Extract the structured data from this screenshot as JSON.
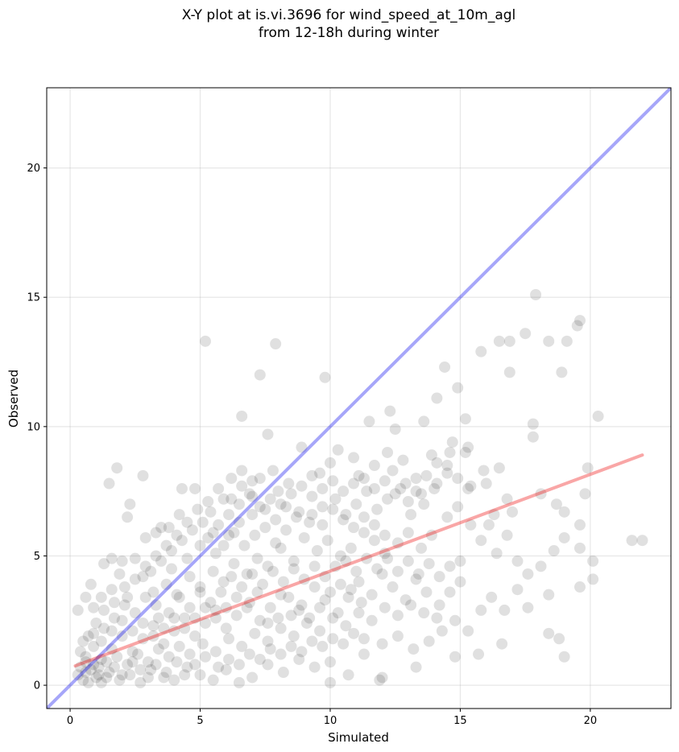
{
  "chart_data": {
    "type": "scatter",
    "title_line1": "X-Y plot at is.vi.3696 for wind_speed_at_10m_agl",
    "title_line2": "from 12-18h during winter",
    "xlabel": "Simulated",
    "ylabel": "Observed",
    "xlim": [
      -0.9,
      23.1
    ],
    "ylim": [
      -0.9,
      23.1
    ],
    "xticks": [
      0,
      5,
      10,
      15,
      20
    ],
    "yticks": [
      0,
      5,
      10,
      15,
      20
    ],
    "grid": true,
    "point_color": "#000000",
    "point_opacity": 0.12,
    "identity_line": {
      "color": "#0000ee",
      "opacity": 0.35,
      "from": [
        -0.9,
        -0.9
      ],
      "to": [
        23.1,
        23.1
      ]
    },
    "fit_line": {
      "color": "#ee0000",
      "opacity": 0.35,
      "from": [
        0.2,
        0.75
      ],
      "to": [
        22.0,
        8.9
      ]
    },
    "points": [
      [
        5.2,
        13.3
      ],
      [
        7.3,
        12.0
      ],
      [
        7.9,
        13.2
      ],
      [
        1.5,
        7.8
      ],
      [
        1.8,
        8.4
      ],
      [
        2.8,
        8.1
      ],
      [
        2.3,
        7.0
      ],
      [
        2.2,
        6.5
      ],
      [
        6.6,
        10.4
      ],
      [
        7.6,
        9.7
      ],
      [
        9.8,
        11.9
      ],
      [
        11.5,
        10.2
      ],
      [
        12.3,
        10.6
      ],
      [
        12.5,
        9.9
      ],
      [
        13.6,
        10.2
      ],
      [
        14.4,
        12.3
      ],
      [
        14.9,
        11.5
      ],
      [
        14.1,
        11.1
      ],
      [
        15.2,
        10.3
      ],
      [
        15.8,
        12.9
      ],
      [
        16.5,
        13.3
      ],
      [
        16.9,
        13.3
      ],
      [
        16.9,
        12.1
      ],
      [
        17.5,
        13.6
      ],
      [
        17.9,
        15.1
      ],
      [
        18.4,
        13.3
      ],
      [
        18.9,
        12.1
      ],
      [
        19.1,
        13.3
      ],
      [
        19.5,
        13.9
      ],
      [
        19.6,
        14.1
      ],
      [
        20.3,
        10.4
      ],
      [
        17.8,
        10.1
      ],
      [
        17.8,
        9.6
      ],
      [
        21.6,
        5.6
      ],
      [
        22.0,
        5.6
      ],
      [
        20.1,
        4.1
      ],
      [
        20.1,
        4.8
      ],
      [
        19.6,
        3.8
      ],
      [
        19.0,
        1.1
      ],
      [
        18.8,
        1.8
      ],
      [
        18.4,
        2.0
      ],
      [
        18.4,
        3.5
      ],
      [
        17.6,
        3.0
      ],
      [
        16.6,
        1.6
      ],
      [
        15.7,
        1.2
      ],
      [
        14.8,
        1.1
      ],
      [
        13.3,
        0.7
      ],
      [
        12.0,
        0.3
      ],
      [
        11.9,
        0.2
      ],
      [
        10.0,
        0.1
      ],
      [
        19.8,
        7.4
      ],
      [
        19.9,
        8.4
      ],
      [
        18.7,
        7.0
      ],
      [
        19.0,
        6.7
      ],
      [
        18.1,
        7.4
      ],
      [
        19.6,
        6.2
      ],
      [
        19.6,
        5.3
      ],
      [
        17.0,
        6.7
      ],
      [
        16.8,
        7.2
      ],
      [
        16.3,
        6.6
      ],
      [
        16.8,
        5.8
      ],
      [
        17.2,
        4.8
      ],
      [
        16.4,
        5.1
      ],
      [
        16.1,
        6.2
      ],
      [
        15.9,
        8.3
      ],
      [
        16.5,
        8.4
      ],
      [
        16.0,
        7.8
      ],
      [
        15.4,
        7.7
      ],
      [
        15.3,
        9.2
      ],
      [
        14.7,
        9.4
      ],
      [
        14.6,
        9.0
      ],
      [
        15.2,
        9.0
      ],
      [
        14.5,
        8.2
      ],
      [
        14.1,
        8.6
      ],
      [
        13.9,
        8.9
      ],
      [
        13.5,
        7.4
      ],
      [
        13.3,
        8.0
      ],
      [
        13.0,
        7.1
      ],
      [
        12.8,
        8.7
      ],
      [
        12.4,
        8.3
      ],
      [
        12.2,
        9.0
      ],
      [
        11.7,
        8.5
      ],
      [
        11.1,
        8.1
      ],
      [
        10.9,
        8.8
      ],
      [
        10.3,
        9.1
      ],
      [
        10.0,
        8.6
      ],
      [
        9.6,
        8.2
      ],
      [
        9.3,
        8.1
      ],
      [
        8.9,
        9.2
      ],
      [
        8.4,
        7.8
      ],
      [
        8.0,
        7.5
      ],
      [
        7.8,
        8.3
      ],
      [
        7.3,
        8.0
      ],
      [
        7.0,
        7.3
      ],
      [
        6.6,
        8.3
      ],
      [
        6.2,
        8.0
      ],
      [
        5.9,
        7.2
      ],
      [
        5.4,
        6.7
      ],
      [
        5.1,
        6.3
      ],
      [
        4.8,
        7.6
      ],
      [
        4.3,
        7.6
      ],
      [
        4.2,
        6.6
      ],
      [
        3.8,
        6.1
      ],
      [
        3.5,
        6.1
      ],
      [
        3.3,
        5.9
      ],
      [
        2.9,
        5.7
      ],
      [
        2.5,
        4.9
      ],
      [
        2.0,
        4.8
      ],
      [
        1.6,
        4.9
      ],
      [
        1.9,
        4.3
      ],
      [
        1.3,
        4.7
      ],
      [
        0.8,
        3.9
      ],
      [
        0.6,
        3.4
      ],
      [
        0.3,
        2.9
      ],
      [
        1.2,
        3.4
      ],
      [
        0.9,
        3.0
      ],
      [
        1.6,
        3.7
      ],
      [
        2.2,
        3.4
      ],
      [
        2.8,
        4.2
      ],
      [
        3.2,
        3.6
      ],
      [
        3.9,
        4.5
      ],
      [
        4.5,
        4.9
      ],
      [
        5.0,
        5.4
      ],
      [
        5.6,
        5.1
      ],
      [
        6.1,
        5.8
      ],
      [
        6.5,
        6.3
      ],
      [
        7.0,
        6.6
      ],
      [
        7.5,
        6.1
      ],
      [
        7.9,
        5.5
      ],
      [
        8.3,
        6.0
      ],
      [
        8.8,
        6.7
      ],
      [
        9.2,
        6.3
      ],
      [
        9.7,
        6.9
      ],
      [
        10.2,
        7.2
      ],
      [
        10.6,
        6.6
      ],
      [
        11.0,
        7.0
      ],
      [
        11.4,
        7.5
      ],
      [
        11.8,
        6.8
      ],
      [
        12.2,
        7.2
      ],
      [
        12.7,
        7.6
      ],
      [
        13.1,
        6.6
      ],
      [
        13.6,
        7.0
      ],
      [
        14.0,
        7.6
      ],
      [
        14.5,
        6.5
      ],
      [
        14.9,
        6.9
      ],
      [
        15.4,
        6.2
      ],
      [
        15.8,
        5.6
      ],
      [
        13.9,
        5.8
      ],
      [
        13.5,
        5.3
      ],
      [
        13.0,
        5.9
      ],
      [
        12.6,
        5.5
      ],
      [
        12.1,
        5.1
      ],
      [
        11.7,
        5.6
      ],
      [
        11.3,
        5.9
      ],
      [
        10.8,
        5.3
      ],
      [
        10.4,
        5.0
      ],
      [
        9.9,
        5.6
      ],
      [
        9.5,
        5.2
      ],
      [
        9.0,
        5.7
      ],
      [
        8.6,
        4.8
      ],
      [
        8.1,
        5.3
      ],
      [
        7.6,
        4.6
      ],
      [
        7.2,
        4.9
      ],
      [
        6.8,
        4.3
      ],
      [
        6.3,
        4.7
      ],
      [
        5.9,
        4.0
      ],
      [
        5.5,
        4.4
      ],
      [
        5.0,
        3.8
      ],
      [
        4.6,
        4.2
      ],
      [
        4.1,
        3.5
      ],
      [
        3.7,
        3.9
      ],
      [
        3.3,
        3.1
      ],
      [
        2.9,
        3.4
      ],
      [
        2.5,
        2.8
      ],
      [
        2.1,
        3.1
      ],
      [
        1.7,
        2.6
      ],
      [
        1.3,
        2.2
      ],
      [
        0.9,
        2.0
      ],
      [
        0.5,
        1.7
      ],
      [
        0.4,
        1.3
      ],
      [
        0.6,
        0.9
      ],
      [
        0.8,
        0.6
      ],
      [
        1.0,
        0.3
      ],
      [
        0.7,
        0.1
      ],
      [
        0.5,
        0.2
      ],
      [
        1.2,
        0.1
      ],
      [
        1.5,
        0.5
      ],
      [
        1.9,
        0.2
      ],
      [
        2.3,
        0.4
      ],
      [
        2.7,
        0.1
      ],
      [
        3.1,
        0.6
      ],
      [
        3.6,
        0.3
      ],
      [
        4.0,
        0.2
      ],
      [
        4.5,
        0.7
      ],
      [
        5.0,
        0.4
      ],
      [
        5.5,
        0.2
      ],
      [
        6.0,
        0.6
      ],
      [
        6.5,
        0.1
      ],
      [
        7.0,
        0.3
      ],
      [
        7.6,
        0.8
      ],
      [
        8.2,
        0.5
      ],
      [
        8.8,
        1.0
      ],
      [
        9.4,
        0.7
      ],
      [
        10.0,
        0.9
      ],
      [
        10.7,
        0.4
      ],
      [
        11.3,
        1.2
      ],
      [
        12.0,
        1.6
      ],
      [
        12.6,
        1.9
      ],
      [
        13.2,
        1.4
      ],
      [
        13.8,
        1.7
      ],
      [
        14.3,
        2.1
      ],
      [
        14.8,
        2.5
      ],
      [
        15.3,
        2.1
      ],
      [
        15.8,
        2.9
      ],
      [
        16.2,
        3.4
      ],
      [
        16.7,
        2.9
      ],
      [
        17.2,
        3.7
      ],
      [
        17.6,
        4.3
      ],
      [
        18.1,
        4.6
      ],
      [
        18.6,
        5.2
      ],
      [
        19.0,
        5.7
      ],
      [
        15.0,
        4.0
      ],
      [
        14.6,
        3.6
      ],
      [
        14.2,
        3.1
      ],
      [
        13.7,
        3.6
      ],
      [
        13.3,
        4.1
      ],
      [
        12.9,
        3.3
      ],
      [
        12.4,
        3.8
      ],
      [
        12.0,
        4.3
      ],
      [
        11.6,
        3.5
      ],
      [
        11.1,
        4.0
      ],
      [
        10.7,
        3.4
      ],
      [
        10.3,
        2.8
      ],
      [
        9.8,
        3.3
      ],
      [
        9.4,
        3.8
      ],
      [
        8.9,
        3.1
      ],
      [
        8.5,
        2.7
      ],
      [
        8.1,
        3.5
      ],
      [
        7.7,
        3.0
      ],
      [
        7.3,
        2.5
      ],
      [
        6.9,
        3.2
      ],
      [
        6.4,
        2.7
      ],
      [
        6.0,
        2.2
      ],
      [
        5.6,
        2.9
      ],
      [
        5.2,
        2.4
      ],
      [
        4.8,
        1.9
      ],
      [
        4.4,
        2.6
      ],
      [
        4.0,
        2.1
      ],
      [
        3.6,
        1.6
      ],
      [
        3.2,
        2.3
      ],
      [
        2.8,
        1.8
      ],
      [
        2.4,
        1.3
      ],
      [
        2.0,
        1.9
      ],
      [
        1.6,
        1.4
      ],
      [
        1.2,
        1.0
      ],
      [
        0.9,
        1.5
      ],
      [
        0.6,
        1.1
      ],
      [
        0.4,
        0.7
      ],
      [
        0.3,
        0.4
      ],
      [
        1.1,
        0.7
      ],
      [
        1.4,
        0.9
      ],
      [
        1.8,
        1.1
      ],
      [
        2.2,
        0.8
      ],
      [
        2.6,
        1.2
      ],
      [
        3.0,
        0.9
      ],
      [
        3.4,
        1.4
      ],
      [
        3.8,
        1.1
      ],
      [
        4.2,
        1.5
      ],
      [
        4.6,
        1.2
      ],
      [
        5.1,
        1.6
      ],
      [
        5.6,
        1.3
      ],
      [
        6.1,
        1.8
      ],
      [
        6.6,
        1.5
      ],
      [
        7.1,
        2.0
      ],
      [
        7.6,
        1.7
      ],
      [
        8.1,
        2.2
      ],
      [
        8.6,
        1.9
      ],
      [
        9.1,
        2.4
      ],
      [
        9.6,
        2.1
      ],
      [
        10.1,
        2.6
      ],
      [
        10.6,
        2.3
      ],
      [
        11.1,
        2.8
      ],
      [
        11.6,
        2.5
      ],
      [
        12.1,
        3.0
      ],
      [
        12.6,
        2.7
      ],
      [
        13.1,
        3.1
      ],
      [
        13.6,
        2.8
      ],
      [
        14.1,
        2.6
      ],
      [
        9.3,
        6.6
      ],
      [
        9.7,
        6.2
      ],
      [
        10.1,
        6.8
      ],
      [
        10.5,
        6.4
      ],
      [
        10.9,
        6.1
      ],
      [
        11.3,
        6.5
      ],
      [
        11.7,
        6.2
      ],
      [
        12.1,
        5.8
      ],
      [
        8.7,
        6.5
      ],
      [
        8.3,
        6.9
      ],
      [
        7.9,
        6.4
      ],
      [
        7.5,
        6.8
      ],
      [
        7.1,
        5.8
      ],
      [
        6.7,
        5.4
      ],
      [
        6.3,
        5.9
      ],
      [
        5.9,
        5.4
      ],
      [
        5.5,
        5.9
      ],
      [
        10.2,
        4.6
      ],
      [
        9.8,
        4.2
      ],
      [
        9.4,
        4.6
      ],
      [
        9.0,
        4.1
      ],
      [
        8.6,
        4.5
      ],
      [
        8.2,
        4.0
      ],
      [
        7.8,
        4.4
      ],
      [
        7.4,
        3.9
      ],
      [
        7.0,
        4.3
      ],
      [
        6.6,
        3.8
      ],
      [
        6.2,
        4.2
      ],
      [
        5.8,
        3.6
      ],
      [
        5.4,
        3.2
      ],
      [
        5.0,
        3.6
      ],
      [
        4.6,
        3.0
      ],
      [
        4.2,
        3.4
      ],
      [
        3.8,
        2.8
      ],
      [
        3.4,
        2.6
      ],
      [
        10.6,
        4.8
      ],
      [
        11.0,
        4.4
      ],
      [
        11.4,
        4.9
      ],
      [
        11.8,
        4.5
      ],
      [
        12.2,
        4.9
      ],
      [
        12.6,
        4.4
      ],
      [
        13.0,
        4.8
      ],
      [
        13.4,
        4.3
      ],
      [
        13.8,
        4.7
      ],
      [
        14.2,
        4.2
      ],
      [
        14.6,
        4.6
      ],
      [
        15.0,
        4.8
      ],
      [
        11.2,
        3.2
      ],
      [
        10.8,
        3.7
      ],
      [
        10.4,
        3.9
      ],
      [
        10.0,
        3.6
      ],
      [
        9.6,
        3.0
      ],
      [
        9.2,
        2.6
      ],
      [
        8.8,
        2.9
      ],
      [
        8.4,
        3.4
      ],
      [
        8.0,
        2.6
      ],
      [
        7.6,
        2.4
      ],
      [
        7.2,
        3.6
      ],
      [
        6.8,
        3.0
      ],
      [
        6.4,
        3.4
      ],
      [
        6.0,
        3.0
      ],
      [
        5.6,
        2.6
      ],
      [
        5.2,
        3.0
      ],
      [
        4.8,
        2.6
      ],
      [
        4.4,
        2.2
      ],
      [
        4.0,
        2.6
      ],
      [
        3.6,
        2.2
      ],
      [
        3.2,
        1.9
      ],
      [
        2.8,
        2.4
      ],
      [
        2.4,
        2.1
      ],
      [
        2.0,
        2.5
      ],
      [
        1.6,
        2.1
      ],
      [
        1.2,
        1.7
      ],
      [
        3.1,
        4.4
      ],
      [
        3.5,
        4.8
      ],
      [
        3.9,
        5.2
      ],
      [
        4.3,
        5.6
      ],
      [
        4.7,
        6.0
      ],
      [
        5.3,
        5.7
      ],
      [
        5.7,
        6.2
      ],
      [
        6.1,
        6.6
      ],
      [
        6.5,
        7.0
      ],
      [
        6.9,
        7.4
      ],
      [
        7.3,
        6.9
      ],
      [
        7.7,
        7.2
      ],
      [
        8.1,
        7.0
      ],
      [
        8.5,
        7.4
      ],
      [
        8.9,
        7.7
      ],
      [
        9.3,
        7.3
      ],
      [
        9.7,
        7.6
      ],
      [
        10.1,
        7.9
      ],
      [
        10.5,
        7.5
      ],
      [
        10.9,
        7.8
      ],
      [
        11.3,
        8.0
      ],
      [
        11.7,
        7.6
      ],
      [
        12.1,
        7.9
      ],
      [
        12.5,
        7.4
      ],
      [
        12.9,
        7.8
      ],
      [
        13.3,
        7.5
      ],
      [
        13.7,
        8.1
      ],
      [
        14.1,
        7.8
      ],
      [
        14.5,
        8.5
      ],
      [
        14.9,
        8.0
      ],
      [
        15.3,
        7.6
      ],
      [
        0.7,
        1.9
      ],
      [
        1.0,
        2.4
      ],
      [
        1.3,
        2.9
      ],
      [
        1.7,
        3.2
      ],
      [
        2.1,
        3.8
      ],
      [
        2.5,
        4.1
      ],
      [
        2.9,
        4.6
      ],
      [
        3.3,
        5.0
      ],
      [
        3.7,
        5.4
      ],
      [
        4.1,
        5.8
      ],
      [
        4.5,
        6.3
      ],
      [
        4.9,
        6.8
      ],
      [
        5.3,
        7.1
      ],
      [
        5.7,
        7.6
      ],
      [
        6.2,
        7.2
      ],
      [
        6.6,
        7.7
      ],
      [
        7.0,
        7.9
      ],
      [
        1.1,
        0.4
      ],
      [
        0.9,
        0.8
      ],
      [
        0.6,
        0.5
      ],
      [
        1.4,
        0.3
      ],
      [
        1.7,
        0.7
      ],
      [
        2.0,
        0.4
      ],
      [
        2.4,
        0.9
      ],
      [
        2.7,
        0.6
      ],
      [
        3.0,
        0.3
      ],
      [
        3.3,
        0.8
      ],
      [
        3.7,
        0.5
      ],
      [
        4.1,
        0.9
      ],
      [
        4.4,
        0.4
      ],
      [
        4.8,
        0.8
      ],
      [
        5.2,
        1.1
      ],
      [
        5.7,
        0.7
      ],
      [
        6.1,
        1.0
      ],
      [
        6.5,
        0.8
      ],
      [
        6.9,
        1.2
      ],
      [
        7.3,
        1.0
      ],
      [
        7.7,
        1.4
      ],
      [
        8.1,
        1.2
      ],
      [
        8.5,
        1.5
      ],
      [
        8.9,
        1.3
      ],
      [
        9.3,
        1.7
      ],
      [
        9.7,
        1.5
      ],
      [
        10.1,
        1.8
      ],
      [
        10.5,
        1.6
      ],
      [
        10.9,
        2.0
      ],
      [
        11.3,
        1.8
      ]
    ]
  }
}
